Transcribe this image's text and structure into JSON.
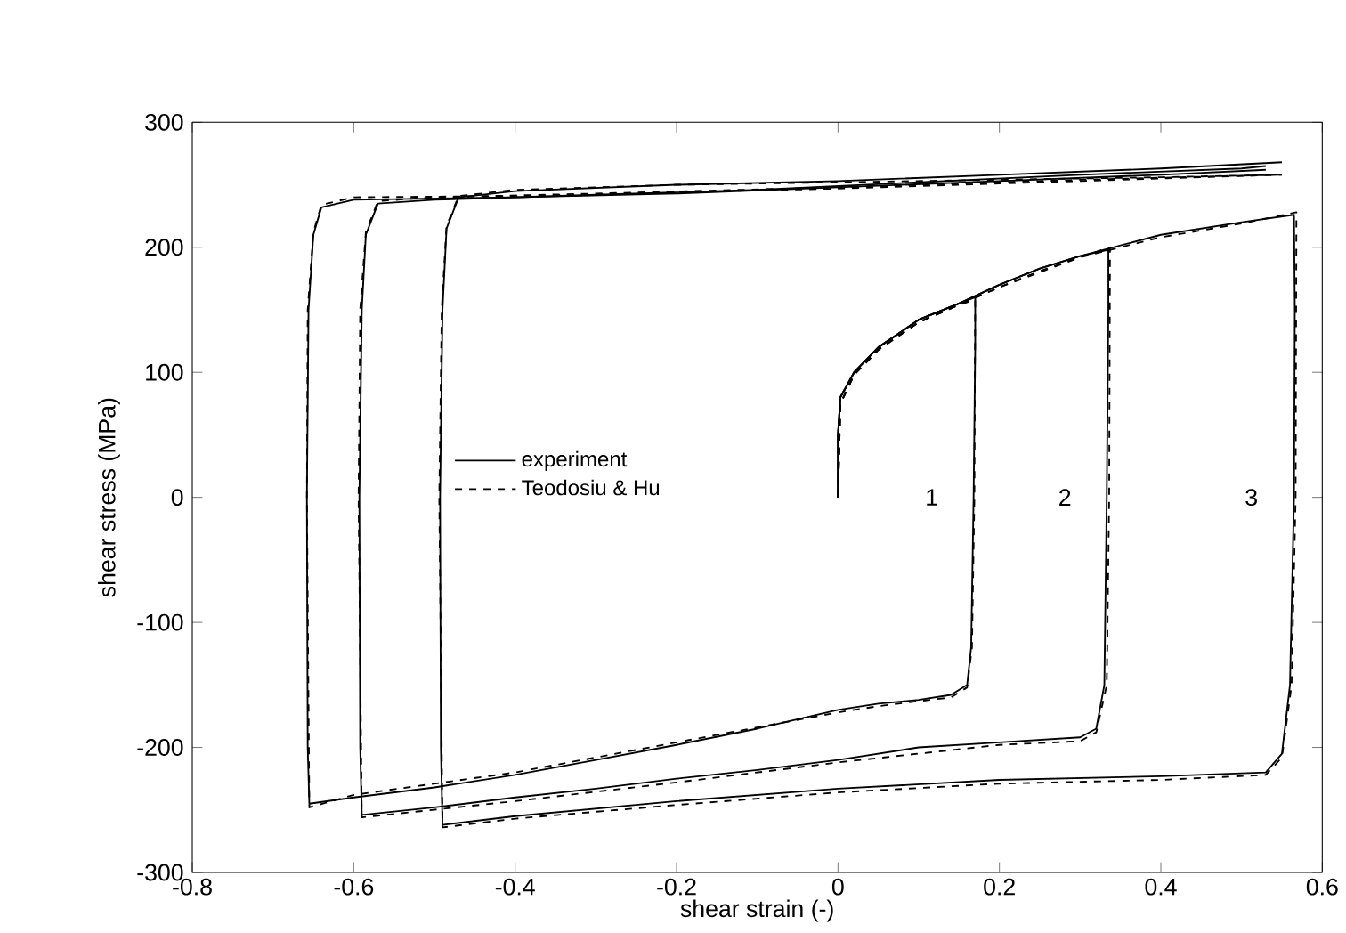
{
  "chart_data": {
    "type": "line",
    "xlabel": "shear strain (-)",
    "ylabel": "shear stress (MPa)",
    "xlim": [
      -0.8,
      0.6
    ],
    "xticks": [
      -0.8,
      -0.6,
      -0.4,
      -0.2,
      0,
      0.2,
      0.4,
      0.6
    ],
    "ylim": [
      -300,
      300
    ],
    "yticks": [
      -300,
      -200,
      -100,
      0,
      100,
      200,
      300
    ],
    "legend": "left",
    "grid": false,
    "marker": "none",
    "annotations": [
      "1",
      "2",
      "3"
    ],
    "series": [
      {
        "name": "experiment",
        "color": "#000000",
        "line_style": "solid",
        "x": [
          0,
          0,
          0.003,
          0.02,
          0.05,
          0.1,
          0.15,
          0.17,
          0.17,
          0.168,
          0.165,
          0.16,
          0.14,
          0.1,
          0.05,
          0,
          -0.1,
          -0.2,
          -0.3,
          -0.4,
          -0.5,
          -0.6,
          -0.655,
          -0.657,
          -0.658,
          -0.656,
          -0.65,
          -0.64,
          -0.6,
          -0.4,
          -0.2,
          0,
          0.2,
          0.4,
          0.53
        ],
        "values": [
          0,
          50,
          80,
          100,
          120,
          142,
          155,
          160,
          120,
          0,
          -120,
          -150,
          -158,
          -162,
          -165,
          -170,
          -185,
          -198,
          -210,
          -222,
          -232,
          -240,
          -245,
          -200,
          0,
          150,
          210,
          232,
          238,
          240,
          243,
          248,
          253,
          258,
          262
        ]
      },
      {
        "color": "#000000",
        "line_style": "solid",
        "x": [
          0,
          0,
          0.003,
          0.02,
          0.05,
          0.1,
          0.15,
          0.2,
          0.25,
          0.3,
          0.335,
          0.335,
          0.333,
          0.33,
          0.32,
          0.3,
          0.2,
          0.1,
          0,
          -0.1,
          -0.2,
          -0.3,
          -0.4,
          -0.5,
          -0.59,
          -0.592,
          -0.593,
          -0.59,
          -0.585,
          -0.57,
          -0.5,
          -0.3,
          -0.1,
          0.3,
          0.5,
          0.53
        ],
        "values": [
          0,
          50,
          80,
          100,
          120,
          142,
          155,
          170,
          183,
          193,
          198,
          150,
          0,
          -150,
          -185,
          -192,
          -196,
          -200,
          -210,
          -218,
          -225,
          -233,
          -240,
          -248,
          -254,
          -200,
          0,
          150,
          210,
          235,
          238,
          242,
          246,
          258,
          263,
          265
        ]
      },
      {
        "color": "#000000",
        "line_style": "solid",
        "x": [
          0,
          0,
          0.003,
          0.02,
          0.05,
          0.1,
          0.15,
          0.2,
          0.25,
          0.3,
          0.4,
          0.5,
          0.565,
          0.566,
          0.565,
          0.56,
          0.55,
          0.53,
          0.4,
          0.2,
          0,
          -0.2,
          -0.4,
          -0.49,
          -0.492,
          -0.493,
          -0.49,
          -0.485,
          -0.47,
          -0.4,
          -0.2,
          0,
          0.2,
          0.4,
          0.55
        ],
        "values": [
          0,
          50,
          80,
          100,
          120,
          142,
          155,
          170,
          183,
          193,
          210,
          220,
          226,
          150,
          0,
          -150,
          -205,
          -220,
          -223,
          -226,
          -233,
          -243,
          -255,
          -262,
          -200,
          0,
          150,
          215,
          240,
          245,
          250,
          253,
          258,
          263,
          268
        ]
      },
      {
        "name": "Teodosiu & Hu",
        "color": "#000000",
        "line_style": "dashed",
        "x": [
          0,
          0.003,
          0.02,
          0.05,
          0.1,
          0.15,
          0.17,
          0.169,
          0.166,
          0.16,
          0.14,
          0.1,
          0.05,
          0,
          -0.2,
          -0.4,
          -0.6,
          -0.655,
          -0.658,
          -0.657,
          -0.65,
          -0.64,
          -0.6,
          -0.4,
          0,
          0.2,
          0.4,
          0.55
        ],
        "values": [
          0,
          75,
          98,
          118,
          140,
          154,
          158,
          0,
          -120,
          -152,
          -160,
          -163,
          -167,
          -172,
          -196,
          -220,
          -238,
          -248,
          0,
          150,
          212,
          234,
          240,
          241,
          247,
          251,
          255,
          258
        ]
      },
      {
        "color": "#000000",
        "line_style": "dashed",
        "x": [
          0,
          0.003,
          0.02,
          0.05,
          0.1,
          0.15,
          0.2,
          0.25,
          0.3,
          0.337,
          0.336,
          0.333,
          0.32,
          0.3,
          0.2,
          0,
          -0.2,
          -0.4,
          -0.59,
          -0.594,
          -0.592,
          -0.585,
          -0.57,
          -0.5,
          -0.3,
          0,
          0.3,
          0.55
        ],
        "values": [
          0,
          75,
          98,
          118,
          140,
          154,
          168,
          181,
          192,
          200,
          0,
          -150,
          -188,
          -195,
          -198,
          -212,
          -228,
          -243,
          -256,
          0,
          150,
          212,
          237,
          240,
          243,
          248,
          254,
          258
        ]
      },
      {
        "color": "#000000",
        "line_style": "dashed",
        "x": [
          0,
          0.003,
          0.02,
          0.05,
          0.1,
          0.2,
          0.3,
          0.4,
          0.5,
          0.568,
          0.567,
          0.562,
          0.55,
          0.53,
          0.4,
          0.2,
          0,
          -0.2,
          -0.4,
          -0.49,
          -0.494,
          -0.491,
          -0.485,
          -0.47,
          -0.4,
          -0.2,
          0.2,
          0.4,
          0.55
        ],
        "values": [
          0,
          75,
          98,
          118,
          140,
          168,
          192,
          208,
          219,
          228,
          0,
          -150,
          -208,
          -222,
          -226,
          -229,
          -236,
          -246,
          -257,
          -264,
          0,
          150,
          217,
          241,
          246,
          250,
          254,
          256,
          258
        ]
      }
    ]
  }
}
